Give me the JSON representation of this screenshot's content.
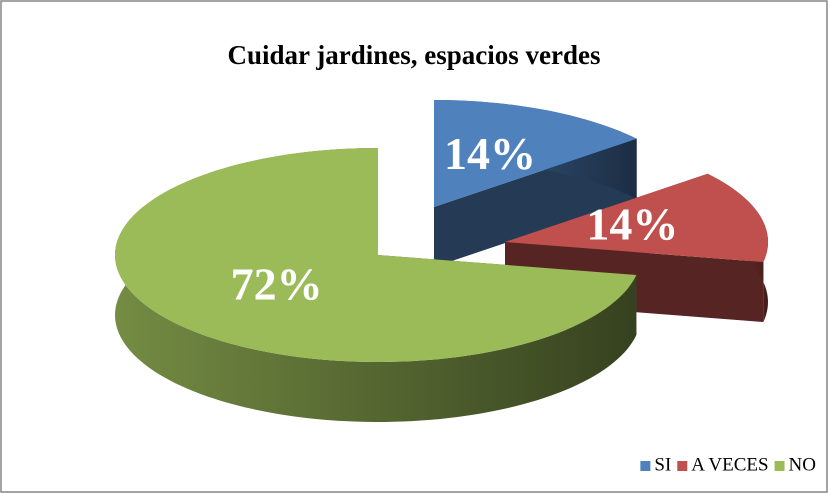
{
  "chart_data": {
    "type": "pie",
    "title": "Cuidar  jardines, espacios verdes",
    "categories": [
      "SI",
      "A VECES",
      "NO"
    ],
    "values": [
      14,
      14,
      72
    ],
    "value_labels": [
      "14%",
      "14%",
      "72%"
    ],
    "colors": [
      "#4f81bd",
      "#c0504d",
      "#9bbb59"
    ],
    "legend": "bottom-right"
  }
}
